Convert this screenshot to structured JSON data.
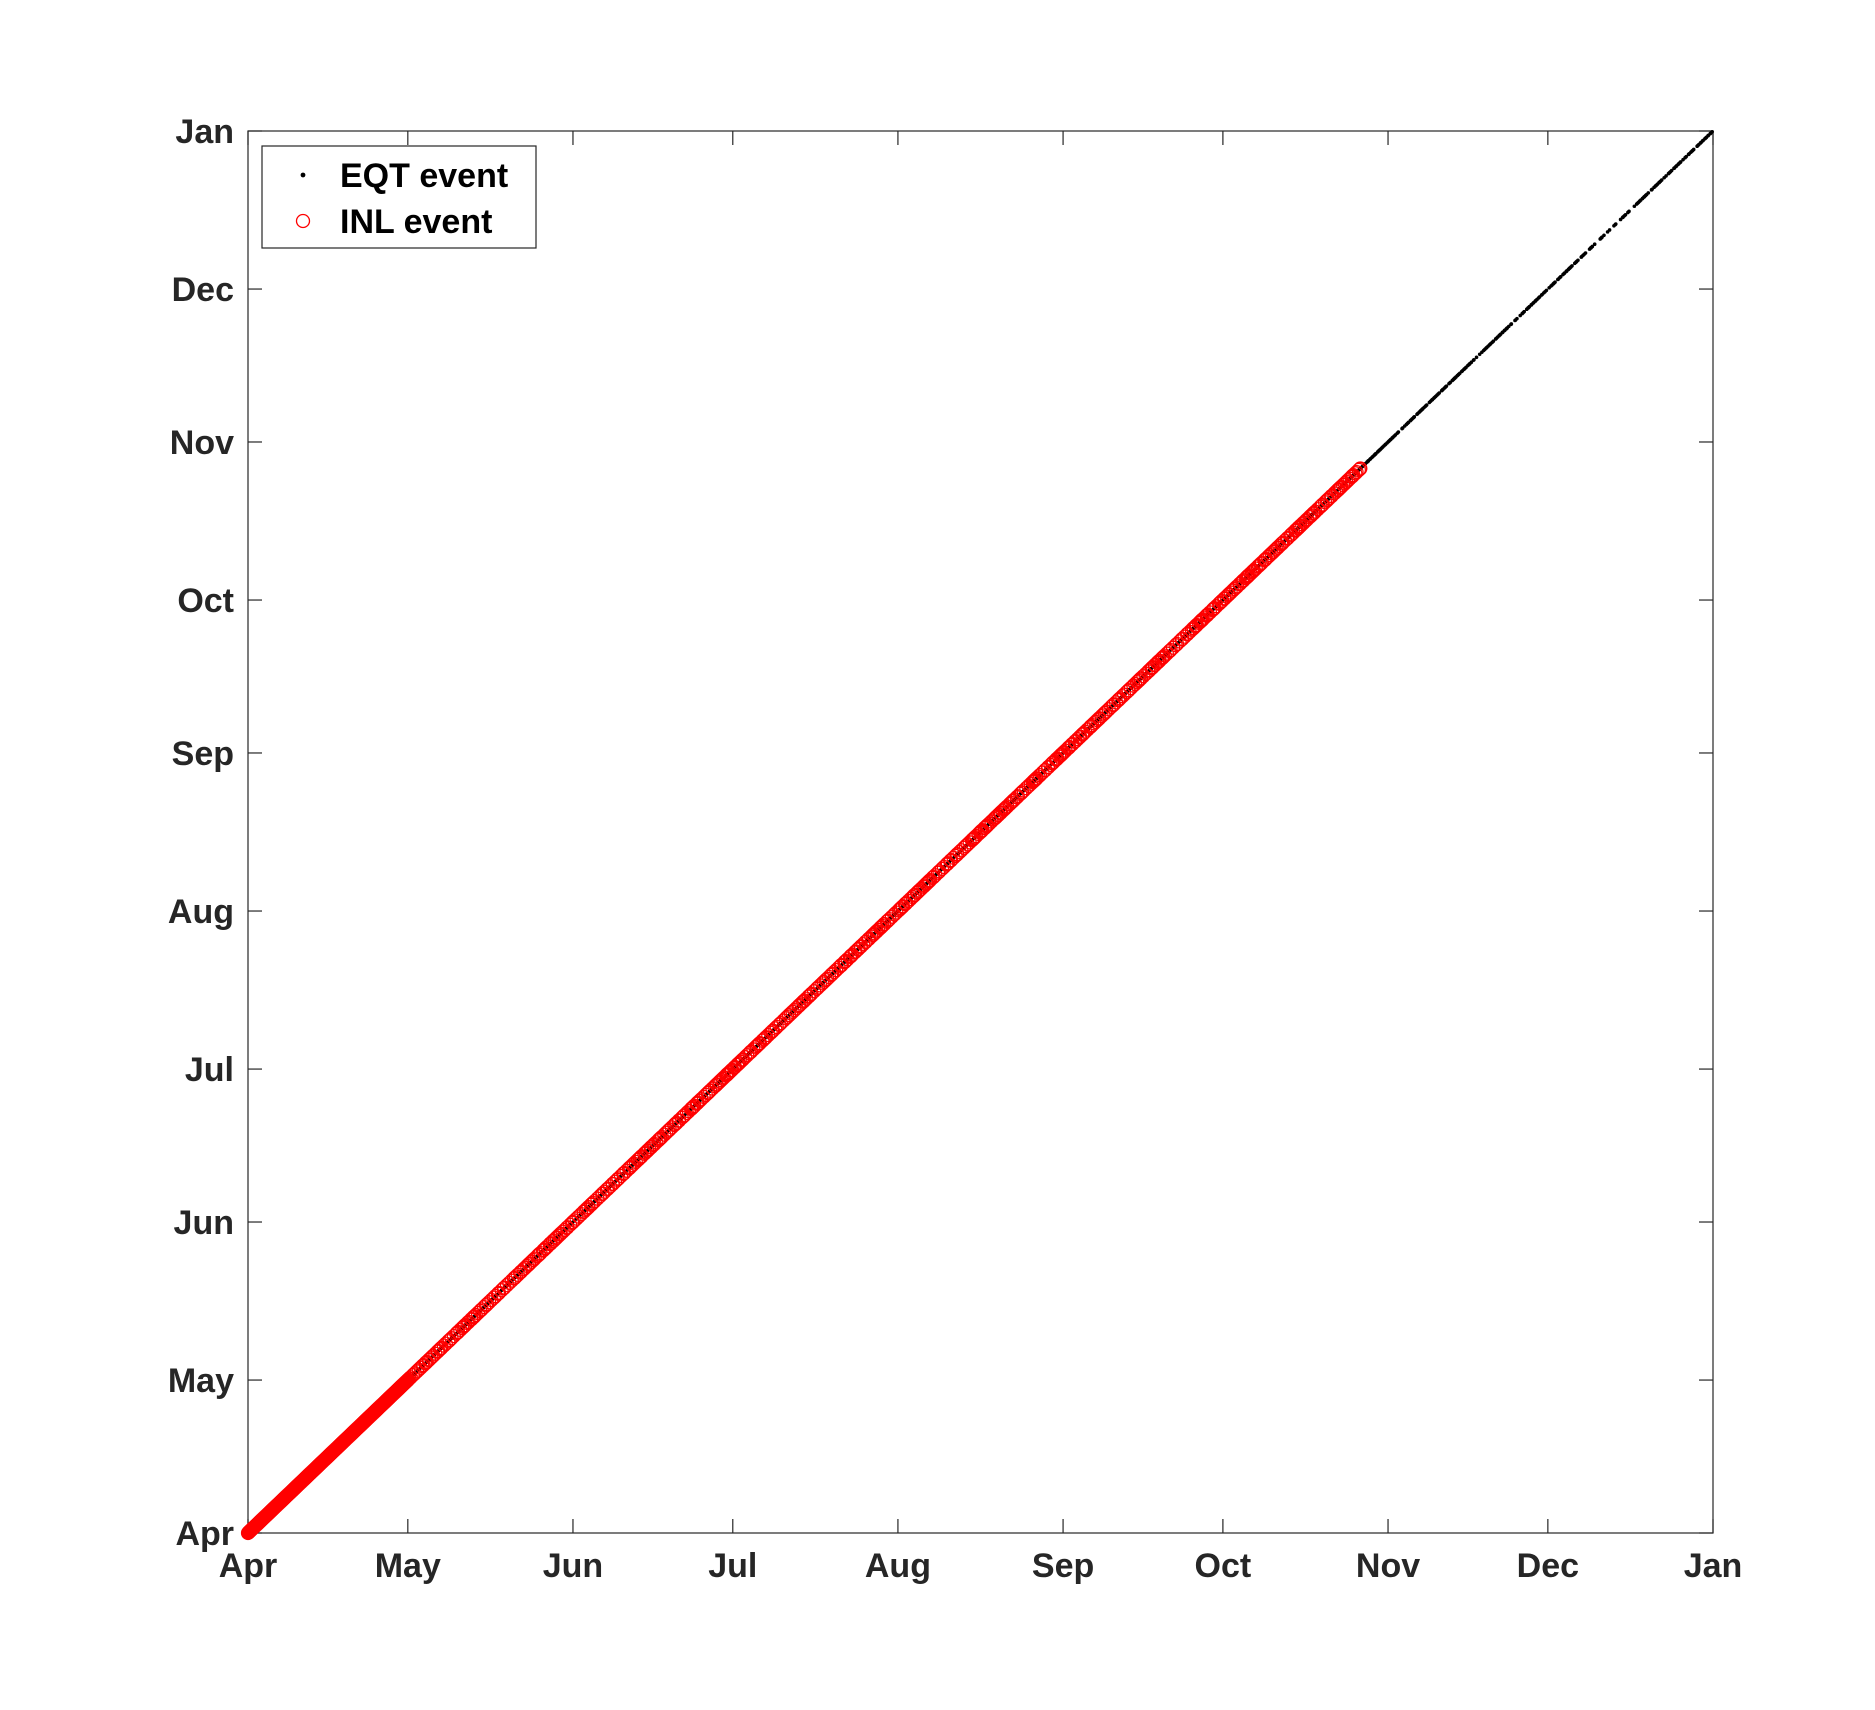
{
  "chart_data": {
    "type": "scatter",
    "title": "",
    "xlabel": "",
    "ylabel": "",
    "x_ticks": [
      "Apr",
      "May",
      "Jun",
      "Jul",
      "Aug",
      "Sep",
      "Oct",
      "Nov",
      "Dec",
      "Jan"
    ],
    "y_ticks": [
      "Apr",
      "May",
      "Jun",
      "Jul",
      "Aug",
      "Sep",
      "Oct",
      "Nov",
      "Dec",
      "Jan"
    ],
    "xlim": [
      "Apr 1",
      "Jan 1"
    ],
    "ylim": [
      "Apr 1",
      "Jan 1"
    ],
    "grid": false,
    "legend_position": "top-left",
    "series": [
      {
        "name": "EQT event",
        "marker": "dot",
        "color": "#000000",
        "x_range": [
          "Apr 1",
          "Jan 1"
        ],
        "sparse_after": "Nov 1",
        "relation": "y = x"
      },
      {
        "name": "INL event",
        "marker": "open-circle",
        "color": "#ff0000",
        "x_range": [
          "Apr 1",
          "Oct 27"
        ],
        "dense_until": "May 1",
        "relation": "y = x"
      }
    ]
  }
}
